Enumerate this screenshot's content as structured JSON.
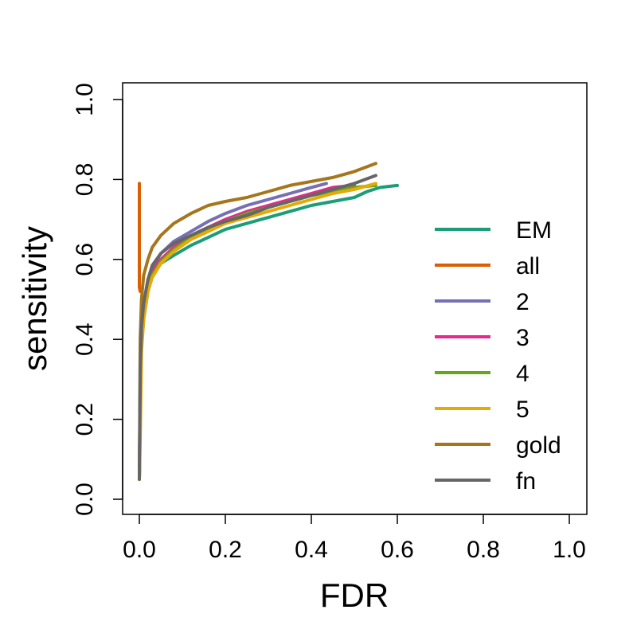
{
  "chart_data": {
    "type": "line",
    "title": "",
    "xlabel": "FDR",
    "ylabel": "sensitivity",
    "xlim": [
      0,
      1
    ],
    "ylim": [
      0,
      1
    ],
    "xticks": [
      "0.0",
      "0.2",
      "0.4",
      "0.6",
      "0.8",
      "1.0"
    ],
    "yticks": [
      "0.0",
      "0.2",
      "0.4",
      "0.6",
      "0.8",
      "1.0"
    ],
    "grid": false,
    "legend_position": "right",
    "series": [
      {
        "name": "EM",
        "color": "#1b9e77",
        "points": [
          [
            0.0,
            0.05
          ],
          [
            0.002,
            0.25
          ],
          [
            0.005,
            0.38
          ],
          [
            0.01,
            0.45
          ],
          [
            0.02,
            0.52
          ],
          [
            0.03,
            0.56
          ],
          [
            0.05,
            0.59
          ],
          [
            0.08,
            0.61
          ],
          [
            0.12,
            0.635
          ],
          [
            0.16,
            0.655
          ],
          [
            0.2,
            0.675
          ],
          [
            0.25,
            0.69
          ],
          [
            0.3,
            0.705
          ],
          [
            0.35,
            0.72
          ],
          [
            0.4,
            0.735
          ],
          [
            0.45,
            0.745
          ],
          [
            0.5,
            0.755
          ],
          [
            0.53,
            0.77
          ],
          [
            0.56,
            0.78
          ],
          [
            0.6,
            0.785
          ]
        ]
      },
      {
        "name": "all",
        "color": "#d95f02",
        "points": [
          [
            0.0,
            0.79
          ],
          [
            0.0,
            0.53
          ],
          [
            0.002,
            0.52
          ]
        ]
      },
      {
        "name": "2",
        "color": "#7570b3",
        "points": [
          [
            0.0,
            0.05
          ],
          [
            0.002,
            0.3
          ],
          [
            0.005,
            0.42
          ],
          [
            0.01,
            0.48
          ],
          [
            0.02,
            0.54
          ],
          [
            0.03,
            0.58
          ],
          [
            0.05,
            0.615
          ],
          [
            0.08,
            0.645
          ],
          [
            0.12,
            0.67
          ],
          [
            0.16,
            0.695
          ],
          [
            0.2,
            0.715
          ],
          [
            0.25,
            0.735
          ],
          [
            0.3,
            0.75
          ],
          [
            0.35,
            0.765
          ],
          [
            0.4,
            0.78
          ],
          [
            0.435,
            0.79
          ]
        ]
      },
      {
        "name": "3",
        "color": "#e7298a",
        "points": [
          [
            0.0,
            0.05
          ],
          [
            0.002,
            0.28
          ],
          [
            0.005,
            0.4
          ],
          [
            0.01,
            0.47
          ],
          [
            0.02,
            0.53
          ],
          [
            0.03,
            0.57
          ],
          [
            0.05,
            0.6
          ],
          [
            0.08,
            0.63
          ],
          [
            0.12,
            0.66
          ],
          [
            0.16,
            0.68
          ],
          [
            0.2,
            0.7
          ],
          [
            0.25,
            0.72
          ],
          [
            0.3,
            0.735
          ],
          [
            0.35,
            0.75
          ],
          [
            0.4,
            0.765
          ],
          [
            0.45,
            0.78
          ],
          [
            0.5,
            0.785
          ]
        ]
      },
      {
        "name": "4",
        "color": "#66a61e",
        "points": [
          [
            0.0,
            0.05
          ],
          [
            0.002,
            0.27
          ],
          [
            0.005,
            0.39
          ],
          [
            0.01,
            0.46
          ],
          [
            0.02,
            0.52
          ],
          [
            0.03,
            0.56
          ],
          [
            0.05,
            0.595
          ],
          [
            0.08,
            0.625
          ],
          [
            0.12,
            0.655
          ],
          [
            0.16,
            0.675
          ],
          [
            0.2,
            0.695
          ],
          [
            0.25,
            0.715
          ],
          [
            0.3,
            0.73
          ],
          [
            0.35,
            0.745
          ],
          [
            0.4,
            0.76
          ],
          [
            0.45,
            0.77
          ],
          [
            0.5,
            0.78
          ],
          [
            0.55,
            0.785
          ]
        ]
      },
      {
        "name": "5",
        "color": "#e6ab02",
        "points": [
          [
            0.0,
            0.05
          ],
          [
            0.002,
            0.15
          ],
          [
            0.005,
            0.37
          ],
          [
            0.01,
            0.45
          ],
          [
            0.02,
            0.52
          ],
          [
            0.03,
            0.555
          ],
          [
            0.05,
            0.59
          ],
          [
            0.08,
            0.62
          ],
          [
            0.12,
            0.65
          ],
          [
            0.16,
            0.67
          ],
          [
            0.2,
            0.69
          ],
          [
            0.25,
            0.705
          ],
          [
            0.3,
            0.72
          ],
          [
            0.35,
            0.735
          ],
          [
            0.4,
            0.75
          ],
          [
            0.45,
            0.765
          ],
          [
            0.5,
            0.775
          ],
          [
            0.55,
            0.79
          ]
        ]
      },
      {
        "name": "gold",
        "color": "#a6761d",
        "points": [
          [
            0.0,
            0.05
          ],
          [
            0.002,
            0.4
          ],
          [
            0.005,
            0.5
          ],
          [
            0.01,
            0.56
          ],
          [
            0.02,
            0.6
          ],
          [
            0.03,
            0.63
          ],
          [
            0.05,
            0.66
          ],
          [
            0.08,
            0.69
          ],
          [
            0.12,
            0.715
          ],
          [
            0.16,
            0.735
          ],
          [
            0.2,
            0.745
          ],
          [
            0.25,
            0.755
          ],
          [
            0.3,
            0.77
          ],
          [
            0.35,
            0.785
          ],
          [
            0.4,
            0.795
          ],
          [
            0.45,
            0.805
          ],
          [
            0.5,
            0.82
          ],
          [
            0.55,
            0.84
          ]
        ]
      },
      {
        "name": "fn",
        "color": "#666666",
        "points": [
          [
            0.0,
            0.05
          ],
          [
            0.002,
            0.32
          ],
          [
            0.005,
            0.43
          ],
          [
            0.01,
            0.49
          ],
          [
            0.02,
            0.55
          ],
          [
            0.03,
            0.585
          ],
          [
            0.05,
            0.615
          ],
          [
            0.08,
            0.64
          ],
          [
            0.12,
            0.66
          ],
          [
            0.16,
            0.68
          ],
          [
            0.2,
            0.695
          ],
          [
            0.25,
            0.71
          ],
          [
            0.3,
            0.73
          ],
          [
            0.35,
            0.745
          ],
          [
            0.4,
            0.76
          ],
          [
            0.45,
            0.775
          ],
          [
            0.5,
            0.79
          ],
          [
            0.55,
            0.81
          ]
        ]
      }
    ]
  }
}
